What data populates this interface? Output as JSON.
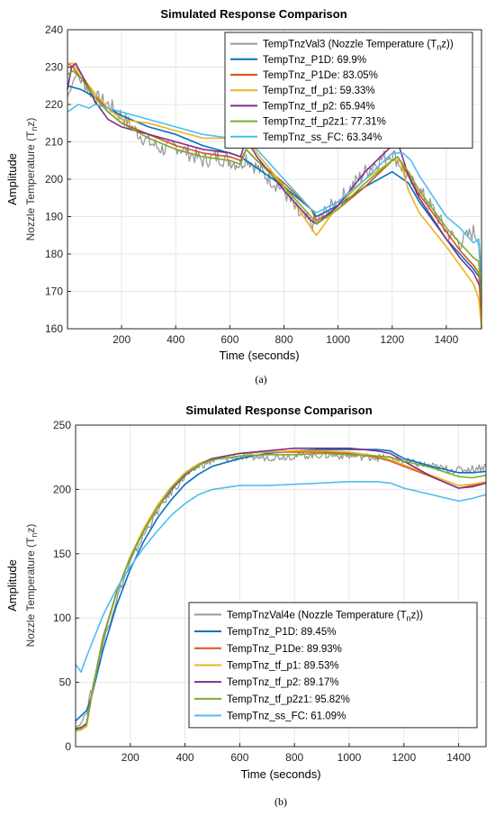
{
  "chart_data": [
    {
      "type": "line",
      "title": "Simulated Response Comparison",
      "xlabel": "Time (seconds)",
      "ylabel": "Amplitude",
      "ylabel_secondary": "Nozzle Temperature (T_nz)",
      "xlim": [
        0,
        1530
      ],
      "ylim": [
        160,
        240
      ],
      "xticks": [
        200,
        400,
        600,
        800,
        1000,
        1200,
        1400
      ],
      "yticks": [
        160,
        170,
        180,
        190,
        200,
        210,
        220,
        230,
        240
      ],
      "grid": true,
      "legend_position": "top-right",
      "caption": "(a)",
      "series": [
        {
          "name": "TempTnzVal3 (Nozzle Temperature (T_nz))",
          "color": "#999999",
          "noise": 2.2,
          "x": [
            0,
            30,
            60,
            100,
            150,
            200,
            250,
            300,
            350,
            400,
            450,
            500,
            550,
            600,
            640,
            660,
            700,
            750,
            800,
            850,
            900,
            920,
            950,
            1000,
            1050,
            1100,
            1150,
            1200,
            1230,
            1260,
            1300,
            1350,
            1400,
            1450,
            1500,
            1520,
            1530
          ],
          "y": [
            222,
            228,
            226,
            222,
            220,
            217,
            213,
            210,
            208,
            209,
            207,
            205,
            206,
            205,
            204,
            206,
            203,
            200,
            197,
            191,
            188,
            188,
            191,
            194,
            198,
            202,
            205,
            207,
            204,
            200,
            197,
            192,
            186,
            183,
            186,
            184,
            168
          ]
        },
        {
          "name": "TempTnz_P1D: 69.9%",
          "color": "#0072bd",
          "x": [
            0,
            50,
            100,
            150,
            200,
            300,
            400,
            500,
            600,
            640,
            700,
            800,
            900,
            920,
            1000,
            1100,
            1200,
            1220,
            1260,
            1300,
            1400,
            1450,
            1500,
            1520,
            1530
          ],
          "y": [
            225,
            224,
            222,
            219,
            217,
            214,
            212,
            209,
            207,
            206,
            203,
            198,
            192,
            190,
            193,
            198,
            202,
            201,
            199,
            194,
            184,
            180,
            176,
            174,
            172
          ]
        },
        {
          "name": "TempTnz_P1De: 83.05%",
          "color": "#d95319",
          "x": [
            0,
            20,
            50,
            100,
            150,
            200,
            300,
            400,
            500,
            600,
            640,
            660,
            700,
            800,
            900,
            920,
            1000,
            1100,
            1200,
            1220,
            1260,
            1300,
            1400,
            1450,
            1500,
            1520,
            1530
          ],
          "y": [
            231,
            230,
            227,
            223,
            218,
            215,
            212,
            209,
            207,
            206,
            205,
            208,
            205,
            199,
            192,
            189,
            192,
            198,
            205,
            206,
            201,
            196,
            186,
            181,
            177,
            175,
            160
          ]
        },
        {
          "name": "TempTnz_tf_p1: 59.33%",
          "color": "#edb120",
          "x": [
            0,
            20,
            50,
            100,
            150,
            200,
            300,
            400,
            500,
            600,
            640,
            660,
            700,
            800,
            900,
            920,
            1000,
            1100,
            1200,
            1230,
            1260,
            1300,
            1400,
            1450,
            1500,
            1520,
            1530
          ],
          "y": [
            231,
            231,
            228,
            223,
            219,
            216,
            215,
            213,
            211,
            211,
            210,
            212,
            207,
            198,
            187,
            185,
            193,
            200,
            205,
            205,
            197,
            191,
            182,
            177,
            172,
            168,
            160
          ]
        },
        {
          "name": "TempTnz_tf_p2: 65.94%",
          "color": "#7e2f8e",
          "x": [
            0,
            15,
            30,
            60,
            100,
            150,
            200,
            300,
            400,
            500,
            600,
            640,
            660,
            700,
            800,
            900,
            920,
            1000,
            1100,
            1200,
            1220,
            1260,
            1300,
            1400,
            1450,
            1500,
            1520,
            1530
          ],
          "y": [
            224,
            230,
            231,
            227,
            221,
            216,
            214,
            212,
            210,
            208,
            207,
            206,
            211,
            206,
            197,
            189,
            188,
            193,
            202,
            209,
            210,
            201,
            195,
            184,
            179,
            175,
            172,
            170
          ]
        },
        {
          "name": "TempTnz_tf_p2z1: 77.31%",
          "color": "#77ac30",
          "x": [
            0,
            20,
            50,
            100,
            150,
            200,
            300,
            400,
            500,
            600,
            640,
            660,
            700,
            800,
            900,
            920,
            1000,
            1100,
            1200,
            1220,
            1260,
            1300,
            1400,
            1450,
            1500,
            1520,
            1530
          ],
          "y": [
            228,
            229,
            227,
            222,
            218,
            215,
            211,
            208,
            206,
            205,
            204,
            208,
            205,
            198,
            190,
            188,
            192,
            199,
            205,
            206,
            202,
            197,
            187,
            183,
            179,
            178,
            167
          ]
        },
        {
          "name": "TempTnz_ss_FC: 63.34%",
          "color": "#4dbeee",
          "x": [
            0,
            40,
            80,
            100,
            150,
            200,
            300,
            400,
            500,
            600,
            660,
            700,
            800,
            850,
            900,
            920,
            1000,
            1100,
            1200,
            1240,
            1270,
            1300,
            1400,
            1450,
            1500,
            1520,
            1530
          ],
          "y": [
            218,
            220,
            219,
            220,
            219,
            218,
            216,
            214,
            212,
            211,
            211,
            208,
            200,
            196,
            192,
            191,
            194,
            200,
            207,
            207,
            205,
            201,
            190,
            187,
            183,
            184,
            175
          ]
        }
      ]
    },
    {
      "type": "line",
      "title": "Simulated Response Comparison",
      "xlabel": "Time (seconds)",
      "ylabel": "Amplitude",
      "ylabel_secondary": "Nozzle Temperature (T_nz)",
      "xlim": [
        0,
        1500
      ],
      "ylim": [
        0,
        250
      ],
      "xticks": [
        200,
        400,
        600,
        800,
        1000,
        1200,
        1400
      ],
      "yticks": [
        0,
        50,
        100,
        150,
        200,
        250
      ],
      "grid": true,
      "legend_position": "bottom-right",
      "caption": "(b)",
      "series": [
        {
          "name": "TempTnzVal4e (Nozzle Temperature (T_nz))",
          "color": "#999999",
          "noise": 3,
          "x": [
            0,
            20,
            40,
            60,
            100,
            150,
            200,
            250,
            300,
            350,
            400,
            450,
            500,
            550,
            600,
            700,
            800,
            900,
            1000,
            1100,
            1150,
            1200,
            1250,
            1300,
            1350,
            1400,
            1450,
            1500
          ],
          "y": [
            15,
            18,
            28,
            45,
            80,
            115,
            143,
            165,
            183,
            198,
            210,
            218,
            222,
            224,
            225,
            225,
            226,
            227,
            226,
            225,
            224,
            222,
            220,
            218,
            216,
            215,
            216,
            218
          ]
        },
        {
          "name": "TempTnz_P1D: 89.45%",
          "color": "#0072bd",
          "x": [
            0,
            40,
            60,
            100,
            150,
            200,
            250,
            300,
            350,
            400,
            450,
            500,
            600,
            700,
            800,
            900,
            1000,
            1100,
            1150,
            1200,
            1300,
            1400,
            1450,
            1500
          ],
          "y": [
            20,
            28,
            40,
            75,
            110,
            138,
            160,
            178,
            192,
            204,
            212,
            218,
            224,
            228,
            230,
            231,
            231,
            231,
            230,
            224,
            218,
            213,
            213,
            214
          ]
        },
        {
          "name": "TempTnz_P1De: 89.93%",
          "color": "#d95319",
          "x": [
            0,
            20,
            40,
            60,
            100,
            150,
            200,
            250,
            300,
            350,
            400,
            450,
            500,
            600,
            700,
            800,
            900,
            1000,
            1100,
            1150,
            1200,
            1300,
            1400,
            1450,
            1500
          ],
          "y": [
            13,
            14,
            17,
            42,
            85,
            120,
            147,
            168,
            186,
            200,
            211,
            219,
            224,
            228,
            229,
            229,
            229,
            228,
            225,
            222,
            218,
            210,
            201,
            203,
            205
          ]
        },
        {
          "name": "TempTnz_tf_p1: 89.53%",
          "color": "#edb120",
          "x": [
            0,
            20,
            40,
            60,
            100,
            150,
            200,
            250,
            300,
            350,
            400,
            450,
            500,
            600,
            700,
            800,
            900,
            1000,
            1100,
            1150,
            1200,
            1300,
            1400,
            1450,
            1500
          ],
          "y": [
            12,
            13,
            16,
            40,
            84,
            120,
            148,
            170,
            188,
            202,
            213,
            220,
            224,
            228,
            229,
            230,
            230,
            229,
            226,
            223,
            219,
            211,
            203,
            204,
            206
          ]
        },
        {
          "name": "TempTnz_tf_p2: 89.17%",
          "color": "#7e2f8e",
          "x": [
            0,
            20,
            40,
            60,
            100,
            150,
            200,
            250,
            300,
            350,
            400,
            450,
            500,
            600,
            700,
            800,
            900,
            1000,
            1100,
            1150,
            1200,
            1300,
            1400,
            1450,
            1500
          ],
          "y": [
            14,
            15,
            18,
            42,
            84,
            120,
            147,
            168,
            186,
            200,
            211,
            219,
            224,
            228,
            230,
            232,
            232,
            232,
            230,
            228,
            222,
            210,
            201,
            202,
            205
          ]
        },
        {
          "name": "TempTnz_tf_p2z1: 95.82%",
          "color": "#77ac30",
          "x": [
            0,
            20,
            40,
            60,
            100,
            150,
            200,
            250,
            300,
            350,
            400,
            450,
            500,
            600,
            700,
            800,
            900,
            1000,
            1100,
            1150,
            1200,
            1300,
            1400,
            1450,
            1500
          ],
          "y": [
            13,
            14,
            17,
            42,
            84,
            120,
            147,
            168,
            186,
            201,
            212,
            219,
            223,
            226,
            227,
            227,
            228,
            227,
            226,
            225,
            222,
            217,
            210,
            209,
            211
          ]
        },
        {
          "name": "TempTnz_ss_FC: 61.09%",
          "color": "#4dbeee",
          "x": [
            0,
            20,
            40,
            100,
            150,
            200,
            250,
            300,
            350,
            400,
            450,
            500,
            600,
            700,
            800,
            900,
            1000,
            1100,
            1150,
            1200,
            1300,
            1400,
            1450,
            1500
          ],
          "y": [
            64,
            58,
            70,
            102,
            123,
            140,
            155,
            168,
            180,
            189,
            196,
            200,
            203,
            203,
            204,
            205,
            206,
            206,
            205,
            201,
            196,
            191,
            193,
            196
          ]
        }
      ]
    }
  ]
}
